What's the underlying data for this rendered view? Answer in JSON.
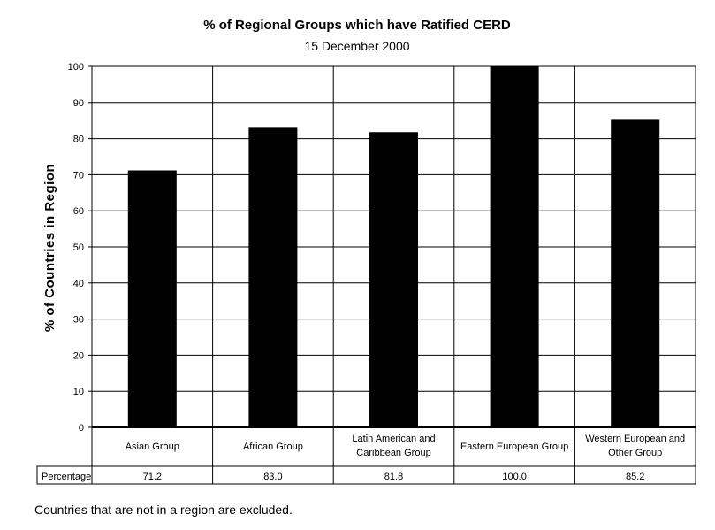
{
  "chart_data": {
    "type": "bar",
    "title": "% of Regional Groups which have Ratified CERD",
    "subtitle": "15 December 2000",
    "ylabel": "% of Countries in Region",
    "xlabel": "",
    "ylim": [
      0,
      100
    ],
    "yticks": [
      0,
      10,
      20,
      30,
      40,
      50,
      60,
      70,
      80,
      90,
      100
    ],
    "grid": true,
    "categories": [
      [
        "Asian Group"
      ],
      [
        "African Group"
      ],
      [
        "Latin American and",
        "Caribbean Group"
      ],
      [
        "Eastern European Group"
      ],
      [
        "Western European and",
        "Other Group"
      ]
    ],
    "values": [
      71.2,
      83.0,
      81.8,
      100.0,
      85.2
    ],
    "table": {
      "row_label": "Percentage",
      "cells": [
        "71.2",
        "83.0",
        "81.8",
        "100.0",
        "85.2"
      ]
    },
    "bar_color": "#000000"
  },
  "footnote": "Countries that are not in a region are excluded."
}
